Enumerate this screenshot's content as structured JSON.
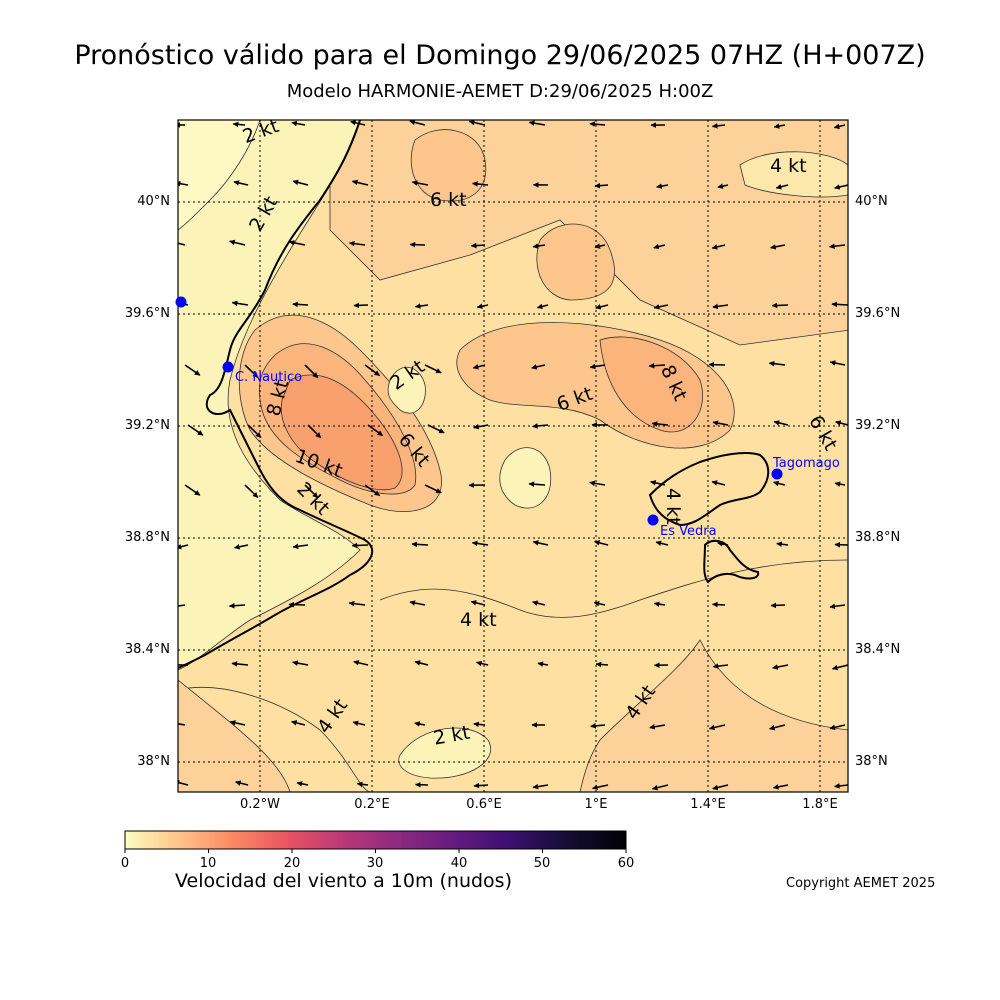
{
  "title": "Pronóstico válido para el Domingo 29/06/2025 07HZ (H+007Z)",
  "subtitle": "Modelo HARMONIE-AEMET D:29/06/2025 H:00Z",
  "lat_labels": [
    "40°N",
    "39.6°N",
    "39.2°N",
    "38.8°N",
    "38.4°N",
    "38°N"
  ],
  "lon_labels": [
    "0.2°W",
    "0.2°E",
    "0.6°E",
    "1°E",
    "1.4°E",
    "1.8°E"
  ],
  "contour_labels": [
    "2 kt",
    "2 kt",
    "6 kt",
    "4 kt",
    "2 kt",
    "8 kt",
    "10 kt",
    "6 kt",
    "2 kt",
    "6 kt",
    "8 kt",
    "6 kt",
    "4 kt",
    "4 kt",
    "4 kt",
    "4 kt",
    "2 kt"
  ],
  "stations": [
    {
      "name": ""
    },
    {
      "name": "C. Nautico"
    },
    {
      "name": "Es Vedra"
    },
    {
      "name": "Tagomago"
    }
  ],
  "colorbar": {
    "ticks": [
      "0",
      "10",
      "20",
      "30",
      "40",
      "50",
      "60"
    ],
    "label": "Velocidad del viento a 10m (nudos)",
    "colors": [
      "#fcfdbf",
      "#fec287",
      "#fb8761",
      "#e75263",
      "#b73779",
      "#8c2981",
      "#641a80",
      "#3b0f70",
      "#140e36",
      "#000004"
    ]
  },
  "copyright": "Copyright AEMET 2025"
}
